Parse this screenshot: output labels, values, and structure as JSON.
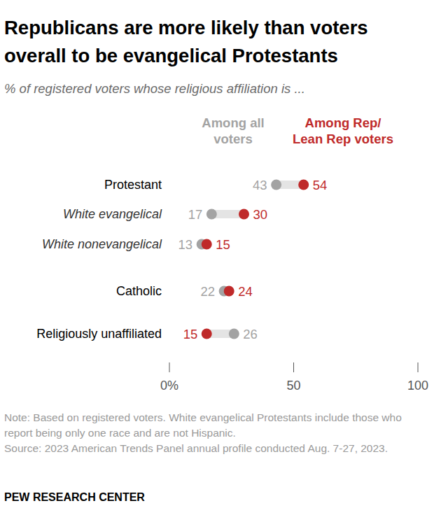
{
  "chart_data": {
    "type": "dot",
    "title": "Republicans are more likely than voters overall to be evangelical Protestants",
    "subtitle": "% of registered voters whose religious affiliation is ...",
    "categories": [
      "Protestant",
      "White evangelical",
      "White nonevangelical",
      "Catholic",
      "Religiously unaffiliated"
    ],
    "series": [
      {
        "name": "Among all\nvoters",
        "color": "#a3a3a3",
        "values": [
          43,
          17,
          13,
          22,
          26
        ]
      },
      {
        "name": "Among Rep/\nLean Rep voters",
        "color": "#bf2a2a",
        "values": [
          54,
          30,
          15,
          24,
          15
        ]
      }
    ],
    "orientation": "horizontal",
    "xlim": [
      0,
      100
    ],
    "xticks": [
      {
        "value": 0,
        "label": "0%"
      },
      50,
      100
    ],
    "data_labels": true,
    "note": "Note: Based on registered voters. White evangelical Protestants include those who report being only one race and are not Hispanic.",
    "source": "Source: 2023 American Trends Panel annual profile conducted Aug. 7-27, 2023.",
    "credit": "PEW RESEARCH CENTER"
  }
}
